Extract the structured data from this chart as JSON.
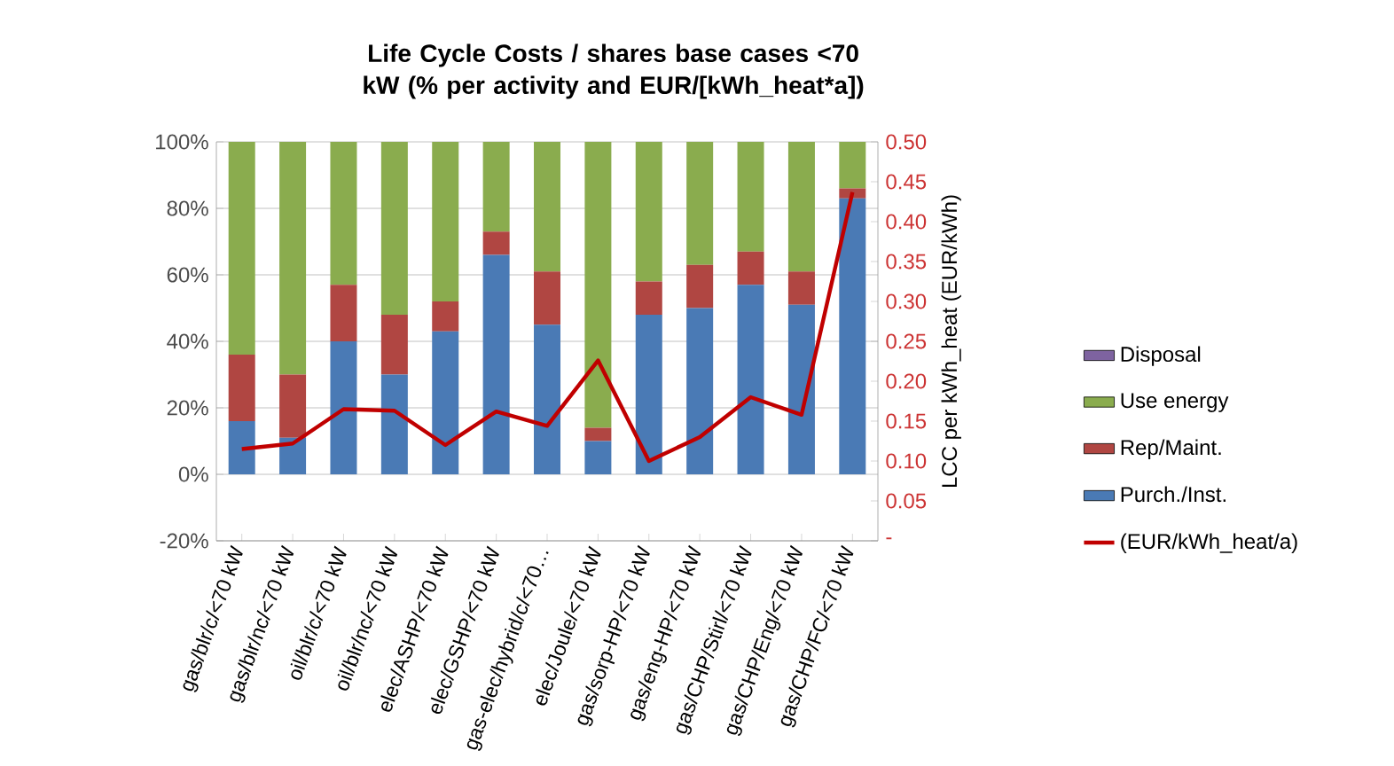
{
  "chart_data": {
    "type": "bar",
    "stacked": true,
    "title": "Life Cycle Costs / shares base cases <70 kW (% per activity and EUR/[kWh_heat*a])",
    "y2label": "LCC per kWh_heat (EUR/kWh)",
    "categories": [
      "gas/blr/c/<70 kW",
      "gas/blr/nc/<70 kW",
      "oil/blr/c/<70 kW",
      "oil/blr/nc/<70 kW",
      "elec/ASHP/<70 kW",
      "elec/GSHP/<70 kW",
      "gas-elec/hybrid/c/<70…",
      "elec/Joule/<70 kW",
      "gas/sorp-HP/<70 kW",
      "gas/eng-HP/<70 kW",
      "gas/CHP/Stirl/<70 kW",
      "gas/CHP/Eng/<70 kW",
      "gas/CHP/FC/<70 kW"
    ],
    "series": [
      {
        "name": "Purch./Inst.",
        "color": "#4a7ab5",
        "values": [
          16,
          11,
          40,
          30,
          43,
          66,
          45,
          10,
          48,
          50,
          57,
          51,
          83
        ]
      },
      {
        "name": "Rep/Maint.",
        "color": "#b04642",
        "values": [
          20,
          19,
          17,
          18,
          9,
          7,
          16,
          4,
          10,
          13,
          10,
          10,
          3
        ]
      },
      {
        "name": "Use energy",
        "color": "#8aac4e",
        "values": [
          64,
          70,
          43,
          52,
          48,
          27,
          39,
          86,
          42,
          37,
          33,
          39,
          14
        ]
      },
      {
        "name": "Disposal",
        "color": "#7e63a0",
        "values": [
          0,
          0,
          0,
          0,
          0,
          0,
          0,
          0,
          0,
          0,
          0,
          0,
          0
        ]
      },
      {
        "name": "(EUR/kWh_heat/a)",
        "type": "line",
        "axis": "y2",
        "color": "#c00000",
        "values": [
          0.115,
          0.122,
          0.165,
          0.163,
          0.12,
          0.162,
          0.144,
          0.226,
          0.1,
          0.13,
          0.18,
          0.158,
          0.437
        ]
      }
    ],
    "ylim": [
      -20,
      100
    ],
    "yticks": [
      {
        "value": -20,
        "label": "-20%"
      },
      {
        "value": 0,
        "label": "0%"
      },
      {
        "value": 20,
        "label": "20%"
      },
      {
        "value": 40,
        "label": "40%"
      },
      {
        "value": 60,
        "label": "60%"
      },
      {
        "value": 80,
        "label": "80%"
      },
      {
        "value": 100,
        "label": "100%"
      }
    ],
    "y2lim": [
      0,
      0.5
    ],
    "y2ticks": [
      {
        "value": 0,
        "label": "-"
      },
      {
        "value": 0.05,
        "label": "0.05"
      },
      {
        "value": 0.1,
        "label": "0.10"
      },
      {
        "value": 0.15,
        "label": "0.15"
      },
      {
        "value": 0.2,
        "label": "0.20"
      },
      {
        "value": 0.25,
        "label": "0.25"
      },
      {
        "value": 0.3,
        "label": "0.30"
      },
      {
        "value": 0.35,
        "label": "0.35"
      },
      {
        "value": 0.4,
        "label": "0.40"
      },
      {
        "value": 0.45,
        "label": "0.45"
      },
      {
        "value": 0.5,
        "label": "0.50"
      }
    ],
    "grid": "y",
    "legend": "right"
  }
}
